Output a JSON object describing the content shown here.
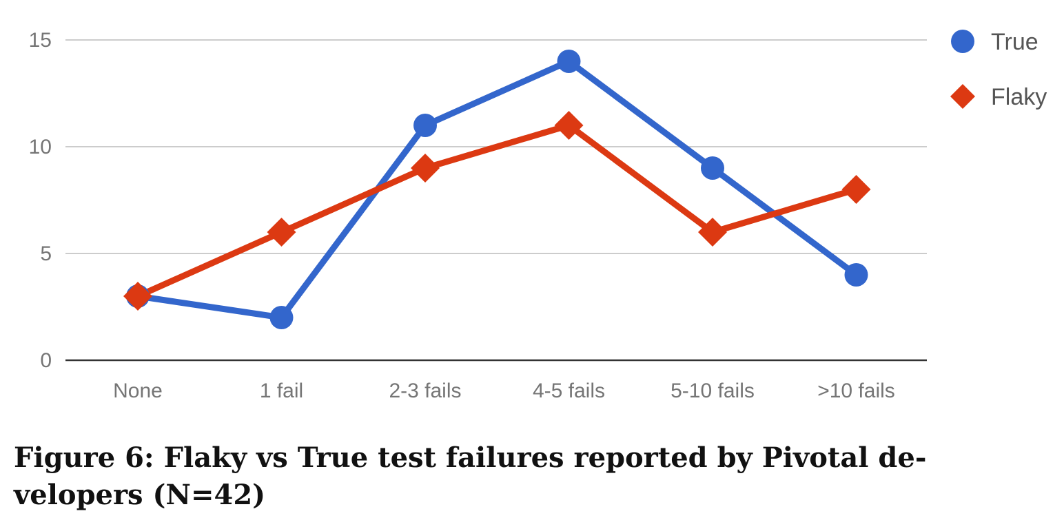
{
  "caption": {
    "line1": "Figure 6: Flaky vs True test failures reported by Pivotal de-",
    "line2": "velopers (N=42)"
  },
  "colors": {
    "true_series": "#3366cc",
    "flaky_series": "#dc3912",
    "grid": "#cccccc",
    "axis": "#333333",
    "tick_text": "#757575"
  },
  "chart_data": {
    "type": "line",
    "categories": [
      "None",
      "1 fail",
      "2-3 fails",
      "4-5 fails",
      "5-10 fails",
      ">10 fails"
    ],
    "series": [
      {
        "name": "True",
        "marker": "circle",
        "color": "#3366cc",
        "values": [
          3,
          2,
          11,
          14,
          9,
          4
        ]
      },
      {
        "name": "Flaky",
        "marker": "diamond",
        "color": "#dc3912",
        "values": [
          3,
          6,
          9,
          11,
          6,
          8
        ]
      }
    ],
    "yticks": [
      0,
      5,
      10,
      15
    ],
    "ylim": [
      0,
      15
    ],
    "xlabel": "",
    "ylabel": "",
    "grid": true,
    "legend": "right"
  }
}
